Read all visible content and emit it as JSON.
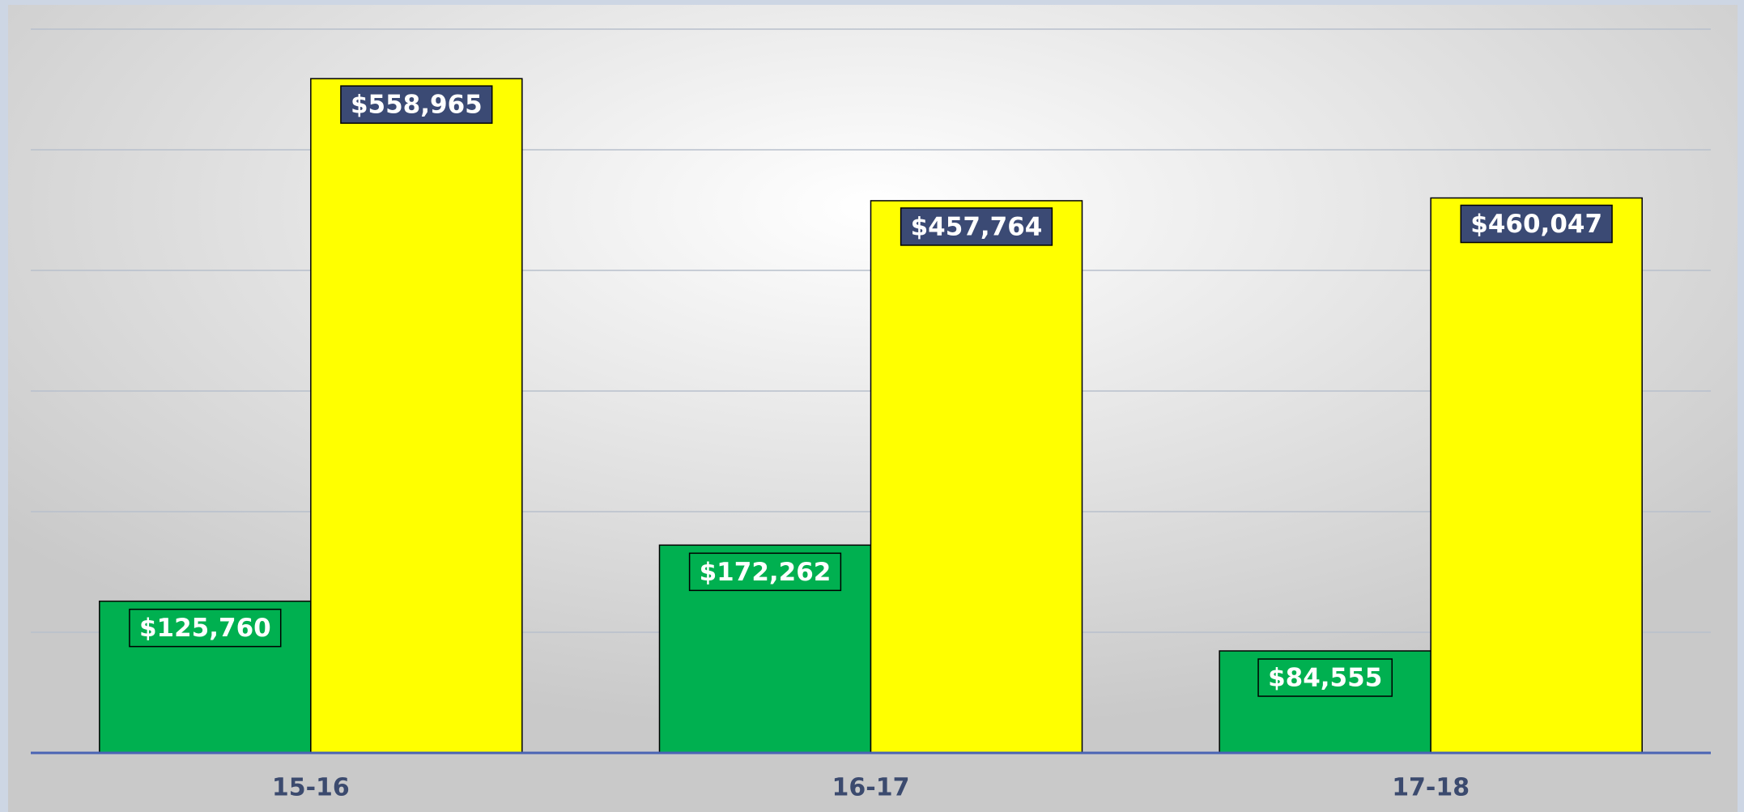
{
  "chart_data": {
    "type": "bar",
    "categories": [
      "15-16",
      "16-17",
      "17-18"
    ],
    "series": [
      {
        "color": "#00b050",
        "values": [
          125760,
          172262,
          84555
        ],
        "value_labels": [
          "$125,760",
          "$172,262",
          "$84,555"
        ]
      },
      {
        "color": "#ffff00",
        "values": [
          558965,
          457764,
          460047
        ],
        "value_labels": [
          "$558,965",
          "$457,764",
          "$460,047"
        ]
      }
    ],
    "ylim": [
      0,
      600000
    ],
    "yticks": [
      0,
      100000,
      200000,
      300000,
      400000,
      500000,
      600000
    ],
    "grid": true
  }
}
